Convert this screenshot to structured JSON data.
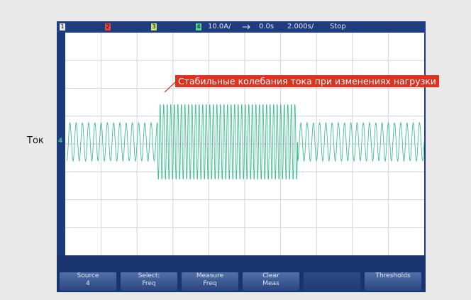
{
  "side_label": "Ток",
  "status_bar": {
    "channels": [
      "1",
      "2",
      "3",
      "4"
    ],
    "scale": "10.0A/",
    "delay": "0.0s",
    "timebase": "2.000s/",
    "state": "Stop"
  },
  "trace_marker": "4",
  "annotation": "Стабильные колебания тока при изменениях нагрузки",
  "softkeys": [
    {
      "label": "Source",
      "value": "4"
    },
    {
      "label": "Select:",
      "value": "Freq"
    },
    {
      "label": "Measure",
      "value": "Freq"
    },
    {
      "label": "Clear",
      "value": "Meas"
    },
    {
      "label": "Thresholds"
    }
  ]
}
